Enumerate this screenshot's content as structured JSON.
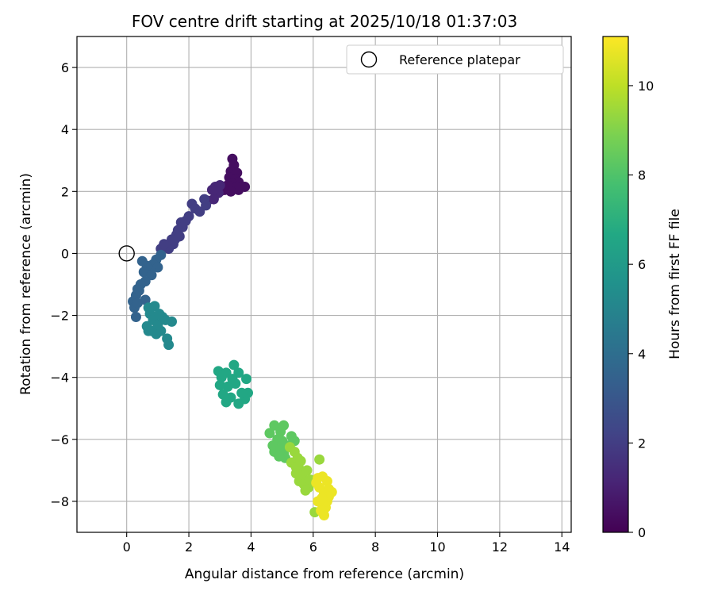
{
  "chart_data": {
    "type": "scatter",
    "title": "FOV centre drift starting at 2025/10/18 01:37:03",
    "xlabel": "Angular distance from reference (arcmin)",
    "ylabel": "Rotation from reference (arcmin)",
    "xlim": [
      -1.6,
      14.3
    ],
    "ylim": [
      -9.0,
      7.0
    ],
    "xticks": [
      0,
      2,
      4,
      6,
      8,
      10,
      12,
      14
    ],
    "yticks": [
      -8,
      -6,
      -4,
      -2,
      0,
      2,
      4,
      6
    ],
    "grid": true,
    "legend": {
      "position": "top-right",
      "entries": [
        "Reference platepar"
      ]
    },
    "reference_point": {
      "x": 0,
      "y": 0,
      "label": "Reference platepar"
    },
    "colorbar": {
      "label": "Hours from first FF file",
      "min": 0,
      "max": 11.1,
      "ticks": [
        0,
        2,
        4,
        6,
        8,
        10
      ],
      "colormap": "viridis"
    },
    "clusters": [
      {
        "t": 0.4,
        "points": [
          [
            3.4,
            3.05
          ],
          [
            3.45,
            2.85
          ],
          [
            3.35,
            2.65
          ],
          [
            3.55,
            2.6
          ],
          [
            3.3,
            2.45
          ],
          [
            3.5,
            2.4
          ],
          [
            3.6,
            2.3
          ],
          [
            3.4,
            2.25
          ],
          [
            3.25,
            2.2
          ],
          [
            3.55,
            2.15
          ],
          [
            3.8,
            2.15
          ],
          [
            3.15,
            2.05
          ],
          [
            3.6,
            2.05
          ],
          [
            3.35,
            2.0
          ],
          [
            3.0,
            2.0
          ],
          [
            3.1,
            2.15
          ]
        ]
      },
      {
        "t": 1.2,
        "points": [
          [
            2.85,
            2.15
          ],
          [
            2.95,
            1.95
          ],
          [
            2.8,
            1.75
          ],
          [
            3.0,
            2.2
          ],
          [
            2.6,
            1.7
          ],
          [
            2.75,
            2.05
          ]
        ]
      },
      {
        "t": 2.0,
        "points": [
          [
            2.1,
            1.6
          ],
          [
            2.2,
            1.45
          ],
          [
            2.35,
            1.35
          ],
          [
            2.5,
            1.75
          ],
          [
            2.55,
            1.55
          ],
          [
            2.0,
            1.2
          ],
          [
            1.9,
            1.05
          ],
          [
            1.75,
            1.0
          ],
          [
            1.8,
            0.85
          ],
          [
            1.65,
            0.75
          ],
          [
            1.6,
            0.6
          ],
          [
            1.55,
            0.45
          ],
          [
            1.5,
            0.3
          ],
          [
            1.4,
            0.25
          ],
          [
            1.35,
            0.15
          ],
          [
            1.25,
            0.2
          ],
          [
            1.1,
            0.15
          ],
          [
            1.45,
            0.45
          ],
          [
            1.7,
            0.55
          ],
          [
            1.2,
            0.3
          ]
        ]
      },
      {
        "t": 3.5,
        "points": [
          [
            1.1,
            -0.05
          ],
          [
            0.95,
            -0.2
          ],
          [
            0.85,
            -0.35
          ],
          [
            1.0,
            -0.45
          ],
          [
            0.75,
            -0.55
          ],
          [
            0.65,
            -0.4
          ],
          [
            0.5,
            -0.25
          ],
          [
            0.55,
            -0.6
          ],
          [
            0.8,
            -0.7
          ],
          [
            0.6,
            -0.9
          ],
          [
            0.45,
            -1.0
          ],
          [
            0.35,
            -1.15
          ],
          [
            0.3,
            -1.35
          ],
          [
            0.2,
            -1.55
          ],
          [
            0.25,
            -1.75
          ],
          [
            0.3,
            -2.05
          ],
          [
            0.4,
            -1.2
          ],
          [
            0.6,
            -1.5
          ],
          [
            0.35,
            -1.6
          ]
        ]
      },
      {
        "t": 5.2,
        "points": [
          [
            0.7,
            -1.75
          ],
          [
            0.9,
            -1.7
          ],
          [
            0.75,
            -1.95
          ],
          [
            0.85,
            -2.15
          ],
          [
            0.65,
            -2.35
          ],
          [
            0.8,
            -2.5
          ],
          [
            0.95,
            -2.6
          ],
          [
            1.1,
            -2.5
          ],
          [
            1.0,
            -2.3
          ],
          [
            1.15,
            -2.05
          ],
          [
            1.25,
            -2.15
          ],
          [
            1.45,
            -2.2
          ],
          [
            1.3,
            -2.75
          ],
          [
            1.35,
            -2.95
          ],
          [
            0.7,
            -2.5
          ],
          [
            1.05,
            -1.95
          ]
        ]
      },
      {
        "t": 6.6,
        "points": [
          [
            2.95,
            -3.8
          ],
          [
            3.2,
            -3.85
          ],
          [
            3.45,
            -3.6
          ],
          [
            3.6,
            -3.85
          ],
          [
            3.85,
            -4.05
          ],
          [
            3.9,
            -4.5
          ],
          [
            3.8,
            -4.7
          ],
          [
            3.6,
            -4.85
          ],
          [
            3.35,
            -4.65
          ],
          [
            3.2,
            -4.8
          ],
          [
            3.1,
            -4.55
          ],
          [
            3.0,
            -4.25
          ],
          [
            3.25,
            -4.3
          ],
          [
            3.5,
            -4.2
          ],
          [
            3.4,
            -4.05
          ],
          [
            3.7,
            -4.5
          ],
          [
            3.05,
            -4.0
          ]
        ]
      },
      {
        "t": 8.3,
        "points": [
          [
            4.6,
            -5.8
          ],
          [
            4.75,
            -5.55
          ],
          [
            4.95,
            -5.75
          ],
          [
            5.05,
            -5.55
          ],
          [
            4.85,
            -6.0
          ],
          [
            4.7,
            -6.2
          ],
          [
            4.75,
            -6.4
          ],
          [
            4.95,
            -6.3
          ],
          [
            5.05,
            -6.45
          ],
          [
            5.2,
            -6.2
          ],
          [
            5.1,
            -6.6
          ],
          [
            5.0,
            -6.05
          ],
          [
            5.3,
            -5.9
          ],
          [
            5.4,
            -6.05
          ],
          [
            4.9,
            -6.55
          ]
        ]
      },
      {
        "t": 9.4,
        "points": [
          [
            5.25,
            -6.25
          ],
          [
            5.4,
            -6.4
          ],
          [
            5.5,
            -6.6
          ],
          [
            5.3,
            -6.75
          ],
          [
            5.45,
            -6.9
          ],
          [
            5.6,
            -7.0
          ],
          [
            5.65,
            -7.2
          ],
          [
            5.55,
            -7.35
          ],
          [
            5.7,
            -7.45
          ],
          [
            5.85,
            -7.55
          ],
          [
            5.75,
            -7.65
          ],
          [
            5.9,
            -7.3
          ],
          [
            5.6,
            -6.7
          ],
          [
            5.8,
            -7.0
          ],
          [
            5.45,
            -7.1
          ],
          [
            6.2,
            -6.65
          ],
          [
            6.05,
            -8.35
          ]
        ]
      },
      {
        "t": 10.8,
        "points": [
          [
            6.15,
            -7.25
          ],
          [
            6.3,
            -7.2
          ],
          [
            6.45,
            -7.35
          ],
          [
            6.5,
            -7.6
          ],
          [
            6.6,
            -7.7
          ],
          [
            6.2,
            -7.55
          ],
          [
            6.35,
            -7.75
          ],
          [
            6.45,
            -7.95
          ],
          [
            6.3,
            -8.1
          ],
          [
            6.15,
            -8.0
          ],
          [
            6.4,
            -8.2
          ],
          [
            6.25,
            -8.3
          ],
          [
            6.35,
            -8.45
          ],
          [
            6.45,
            -8.0
          ],
          [
            6.1,
            -7.4
          ],
          [
            6.5,
            -7.85
          ],
          [
            6.28,
            -7.9
          ]
        ]
      }
    ]
  }
}
